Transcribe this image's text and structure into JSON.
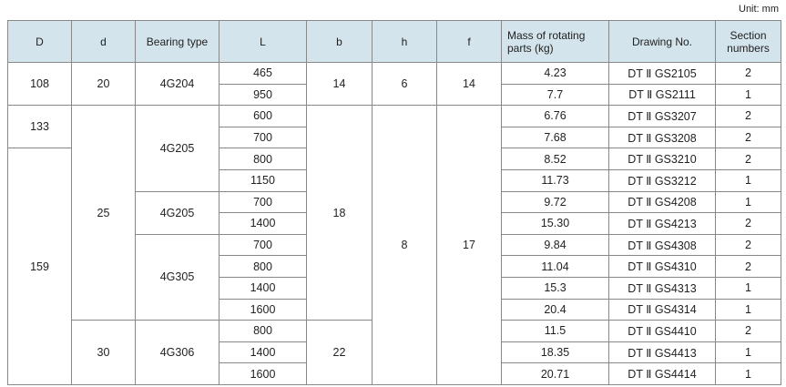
{
  "unit": "Unit: mm",
  "headers": [
    "D",
    "d",
    "Bearing type",
    "L",
    "b",
    "h",
    "f",
    "Mass of rotating parts (kg)",
    "Drawing No.",
    "Section numbers"
  ],
  "merged": {
    "D": [
      "108",
      "133",
      "159"
    ],
    "d": [
      "20",
      "25",
      "30"
    ],
    "bearing": [
      "4G204",
      "4G205",
      "4G205",
      "4G305",
      "4G306"
    ],
    "b": [
      "14",
      "18",
      "22"
    ],
    "h": [
      "6",
      "8"
    ],
    "f": [
      "14",
      "17"
    ]
  },
  "rows": [
    {
      "L": "465",
      "mass": "4.23",
      "drawing": "DT Ⅱ GS2105",
      "section": "2"
    },
    {
      "L": "950",
      "mass": "7.7",
      "drawing": "DT Ⅱ GS2111",
      "section": "1"
    },
    {
      "L": "600",
      "mass": "6.76",
      "drawing": "DT Ⅱ GS3207",
      "section": "2"
    },
    {
      "L": "700",
      "mass": "7.68",
      "drawing": "DT Ⅱ GS3208",
      "section": "2"
    },
    {
      "L": "800",
      "mass": "8.52",
      "drawing": "DT Ⅱ GS3210",
      "section": "2"
    },
    {
      "L": "1150",
      "mass": "11.73",
      "drawing": "DT Ⅱ GS3212",
      "section": "1"
    },
    {
      "L": "700",
      "mass": "9.72",
      "drawing": "DT Ⅱ GS4208",
      "section": "1"
    },
    {
      "L": "1400",
      "mass": "15.30",
      "drawing": "DT Ⅱ GS4213",
      "section": "2"
    },
    {
      "L": "700",
      "mass": "9.84",
      "drawing": "DT Ⅱ GS4308",
      "section": "2"
    },
    {
      "L": "800",
      "mass": "11.04",
      "drawing": "DT Ⅱ GS4310",
      "section": "2"
    },
    {
      "L": "1400",
      "mass": "15.3",
      "drawing": "DT Ⅱ GS4313",
      "section": "1"
    },
    {
      "L": "1600",
      "mass": "20.4",
      "drawing": "DT Ⅱ GS4314",
      "section": "1"
    },
    {
      "L": "800",
      "mass": "11.5",
      "drawing": "DT Ⅱ GS4410",
      "section": "2"
    },
    {
      "L": "1400",
      "mass": "18.35",
      "drawing": "DT Ⅱ GS4413",
      "section": "1"
    },
    {
      "L": "1600",
      "mass": "20.71",
      "drawing": "DT Ⅱ GS4414",
      "section": "1"
    }
  ]
}
